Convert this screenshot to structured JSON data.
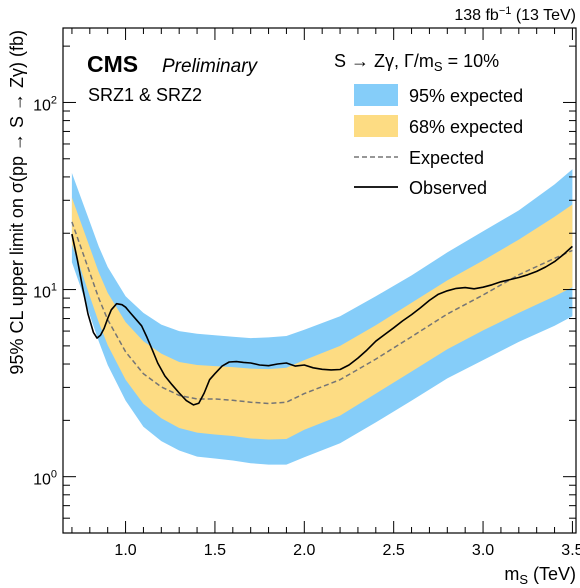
{
  "header": {
    "lumi_main": "138 fb",
    "lumi_exp": "−1",
    "lumi_energy": " (13 TeV)"
  },
  "labels": {
    "cms": "CMS",
    "preliminary": "Preliminary",
    "region": "SRZ1 & SRZ2",
    "model_pre": "S → Zγ,  Γ/m",
    "model_sub": "S",
    "model_post": " = 10%"
  },
  "colors": {
    "band95": "#85cdf9",
    "band68": "#fddc83",
    "expected": "#757575",
    "observed": "#000000"
  },
  "chart_data": {
    "type": "line",
    "title": "",
    "xlabel_main": "m",
    "xlabel_sub": "S",
    "xlabel_unit": " (TeV)",
    "ylabel": "95% CL upper limit on σ(pp → S → Zγ) (fb)",
    "xlim": [
      0.65,
      3.52
    ],
    "ylim": [
      0.5,
      250
    ],
    "yscale": "log",
    "x_ticks": [
      "1.0",
      "1.5",
      "2.0",
      "2.5",
      "3.0",
      "3.5"
    ],
    "x_tick_values": [
      1.0,
      1.5,
      2.0,
      2.5,
      3.0,
      3.5
    ],
    "y_ticks": [
      {
        "base": "10",
        "exp": "0",
        "value": 1
      },
      {
        "base": "10",
        "exp": "1",
        "value": 10
      },
      {
        "base": "10",
        "exp": "2",
        "value": 100
      }
    ],
    "legend": [
      {
        "label": "95% expected",
        "style": "band95"
      },
      {
        "label": "68% expected",
        "style": "band68"
      },
      {
        "label": "Expected",
        "style": "dashed"
      },
      {
        "label": "Observed",
        "style": "solid"
      }
    ],
    "x": [
      0.7,
      0.75,
      0.8,
      0.85,
      0.9,
      1.0,
      1.1,
      1.2,
      1.3,
      1.4,
      1.5,
      1.6,
      1.7,
      1.8,
      1.9,
      2.0,
      2.2,
      2.4,
      2.6,
      2.8,
      3.0,
      3.2,
      3.4,
      3.5
    ],
    "series": [
      {
        "name": "95% expected",
        "kind": "band",
        "lower": [
          14,
          10.2,
          7.3,
          5.3,
          3.95,
          2.55,
          1.85,
          1.55,
          1.38,
          1.28,
          1.25,
          1.22,
          1.18,
          1.16,
          1.16,
          1.27,
          1.51,
          1.95,
          2.55,
          3.35,
          4.2,
          5.25,
          6.4,
          7.2
        ],
        "upper": [
          42,
          31,
          23,
          17,
          13.2,
          9.2,
          7.5,
          6.5,
          6.0,
          5.8,
          5.7,
          5.6,
          5.5,
          5.55,
          5.65,
          6.1,
          7.2,
          9.2,
          11.9,
          15.8,
          20.5,
          26.5,
          36.5,
          44.0
        ]
      },
      {
        "name": "68% expected",
        "kind": "band",
        "lower": [
          17.5,
          12.8,
          9.2,
          6.7,
          5.05,
          3.3,
          2.45,
          2.05,
          1.82,
          1.72,
          1.68,
          1.65,
          1.6,
          1.58,
          1.59,
          1.78,
          2.12,
          2.78,
          3.65,
          4.8,
          6.05,
          7.5,
          9.2,
          10.3
        ],
        "upper": [
          31,
          22.8,
          16.8,
          12.4,
          9.6,
          6.7,
          5.3,
          4.55,
          4.1,
          3.95,
          3.9,
          3.85,
          3.78,
          3.76,
          3.82,
          4.2,
          5.0,
          6.45,
          8.5,
          11.2,
          14.3,
          18.5,
          24.5,
          28.5
        ]
      },
      {
        "name": "Expected",
        "kind": "line",
        "values": [
          23,
          16.8,
          12.3,
          9.0,
          6.9,
          4.65,
          3.55,
          3.02,
          2.72,
          2.6,
          2.6,
          2.56,
          2.5,
          2.46,
          2.5,
          2.78,
          3.3,
          4.25,
          5.6,
          7.4,
          9.35,
          12.0,
          14.7,
          16.2
        ]
      },
      {
        "name": "Observed",
        "kind": "line",
        "x": [
          0.7,
          0.73,
          0.76,
          0.79,
          0.82,
          0.84,
          0.86,
          0.88,
          0.9,
          0.92,
          0.95,
          0.98,
          1.0,
          1.03,
          1.06,
          1.09,
          1.12,
          1.15,
          1.18,
          1.22,
          1.26,
          1.3,
          1.34,
          1.38,
          1.41,
          1.44,
          1.47,
          1.5,
          1.54,
          1.58,
          1.62,
          1.66,
          1.7,
          1.75,
          1.8,
          1.85,
          1.9,
          1.95,
          2.0,
          2.05,
          2.1,
          2.15,
          2.2,
          2.25,
          2.3,
          2.35,
          2.4,
          2.45,
          2.5,
          2.55,
          2.6,
          2.65,
          2.7,
          2.75,
          2.8,
          2.85,
          2.9,
          2.95,
          3.0,
          3.05,
          3.1,
          3.15,
          3.2,
          3.25,
          3.3,
          3.35,
          3.4,
          3.45,
          3.5
        ],
        "values": [
          19.8,
          14.5,
          10.2,
          7.4,
          5.9,
          5.5,
          5.7,
          6.2,
          7.0,
          7.8,
          8.4,
          8.3,
          8.05,
          7.45,
          6.9,
          6.4,
          5.55,
          4.75,
          4.05,
          3.45,
          3.1,
          2.8,
          2.55,
          2.42,
          2.47,
          2.8,
          3.3,
          3.55,
          3.9,
          4.1,
          4.12,
          4.08,
          4.05,
          3.95,
          3.92,
          4.0,
          4.05,
          3.9,
          3.95,
          3.82,
          3.75,
          3.72,
          3.74,
          3.95,
          4.3,
          4.75,
          5.3,
          5.75,
          6.25,
          6.8,
          7.35,
          8.0,
          8.75,
          9.45,
          9.85,
          10.15,
          10.25,
          10.1,
          10.3,
          10.6,
          11.0,
          11.3,
          11.6,
          12.0,
          12.5,
          13.2,
          14.1,
          15.4,
          17.0
        ]
      }
    ]
  }
}
